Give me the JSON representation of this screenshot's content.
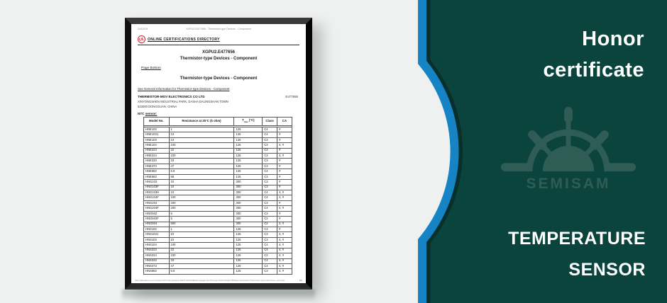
{
  "right_panel": {
    "title_line1": "Honor",
    "title_line2": "certificate",
    "subtitle_line1": "TEMPERATURE",
    "subtitle_line2": "SENSOR",
    "watermark": "SEMISAM",
    "colors": {
      "background": "#0b433d",
      "accent_blue": "#1583c4",
      "watermark": "#2f5d56"
    }
  },
  "document": {
    "printed_date": "2/4/2019",
    "browser_header": "XGPU2.E477656 - Thermistor-type Devices - Component",
    "ul_logo": "UL",
    "directory_title": "ONLINE CERTIFICATIONS DIRECTORY",
    "cert_number": "XGPU2.E477656",
    "cert_title": "Thermistor-type Devices - Component",
    "page_bottom_link": "Page Bottom",
    "section_title": "Thermistor-type Devices - Component",
    "general_info_link": "See General Information for Thermistor-type Devices - Component",
    "company_name": "THERMISTOR-MOV ELECTRONICS CO LTD",
    "company_address1": "XINYONGSHEN INDUSTRIAL PARK, DASHA DALINGSHAN TOWN",
    "company_address2": "523000 DONGGUAN, CHINA",
    "file_number": "E477656",
    "table_label_prefix": "NTC ",
    "table_label_link": "sensor:",
    "table": {
      "col_model": "Model No.",
      "col_resistance": "Resistance at 25°C (k ohm)",
      "col_tmax_main": "T",
      "col_tmax_sub": "max",
      "col_tmax_unit": " (°C)",
      "col_class": "Class",
      "col_ca": "CA",
      "rows": [
        [
          "HNE102",
          "1",
          "125",
          "C4",
          "#"
        ],
        [
          "HNE1031",
          "10",
          "125",
          "C4",
          "#"
        ],
        [
          "HNE103",
          "10",
          "125",
          "C3",
          "#"
        ],
        [
          "HNE104",
          "100",
          "125",
          "C3",
          "4, #"
        ],
        [
          "HNE223",
          "22",
          "125",
          "C3",
          "#"
        ],
        [
          "HNE224",
          "220",
          "125",
          "C3",
          "4, #"
        ],
        [
          "HNE333",
          "33",
          "125",
          "C3",
          "#"
        ],
        [
          "HNE473",
          "47",
          "125",
          "C3",
          "#"
        ],
        [
          "HNE682",
          "6.8",
          "125",
          "C4",
          "#"
        ],
        [
          "HNE683",
          "68",
          "125",
          "C3",
          "#"
        ],
        [
          "HNG103",
          "10",
          "300",
          "C3",
          "#"
        ],
        [
          "HNG103F",
          "10",
          "300",
          "C3",
          "#"
        ],
        [
          "HNG103H",
          "10",
          "300",
          "C4",
          "4, #"
        ],
        [
          "HNG104F",
          "100",
          "300",
          "C4",
          "4, #"
        ],
        [
          "HNG204",
          "200",
          "300",
          "C3",
          "#"
        ],
        [
          "HNG204F",
          "200",
          "300",
          "C4",
          "4, #"
        ],
        [
          "HNG502",
          "5",
          "300",
          "C3",
          "#"
        ],
        [
          "HNG502F",
          "5",
          "300",
          "C2",
          "#"
        ],
        [
          "HNG504",
          "500",
          "300",
          "C2",
          "2, #"
        ],
        [
          "HNS102",
          "1",
          "125",
          "C3",
          "#"
        ],
        [
          "HNS1031",
          "10",
          "125",
          "C3",
          "4, #"
        ],
        [
          "HNS103",
          "10",
          "125",
          "C3",
          "4, #"
        ],
        [
          "HNS104",
          "100",
          "125",
          "C4",
          "4, #"
        ],
        [
          "HNS223",
          "22",
          "125",
          "C4",
          "4, #"
        ],
        [
          "HNS224",
          "220",
          "125",
          "C2",
          "4, #"
        ],
        [
          "HNS333",
          "33",
          "125",
          "C4",
          "4, #"
        ],
        [
          "HNS473",
          "47",
          "125",
          "C4",
          "4, #"
        ],
        [
          "HNS682",
          "6.8",
          "125",
          "C3",
          "4, #"
        ]
      ]
    },
    "footer_url": "http://database.ul.com/cgi-bin/XYV/template/LISEXT/1FRAME/showpage.html?name=XGPU2.E477656&ccnshorttitle=Thermistor-type+Devices+-+Compo...",
    "page_indicator": "1/2"
  }
}
